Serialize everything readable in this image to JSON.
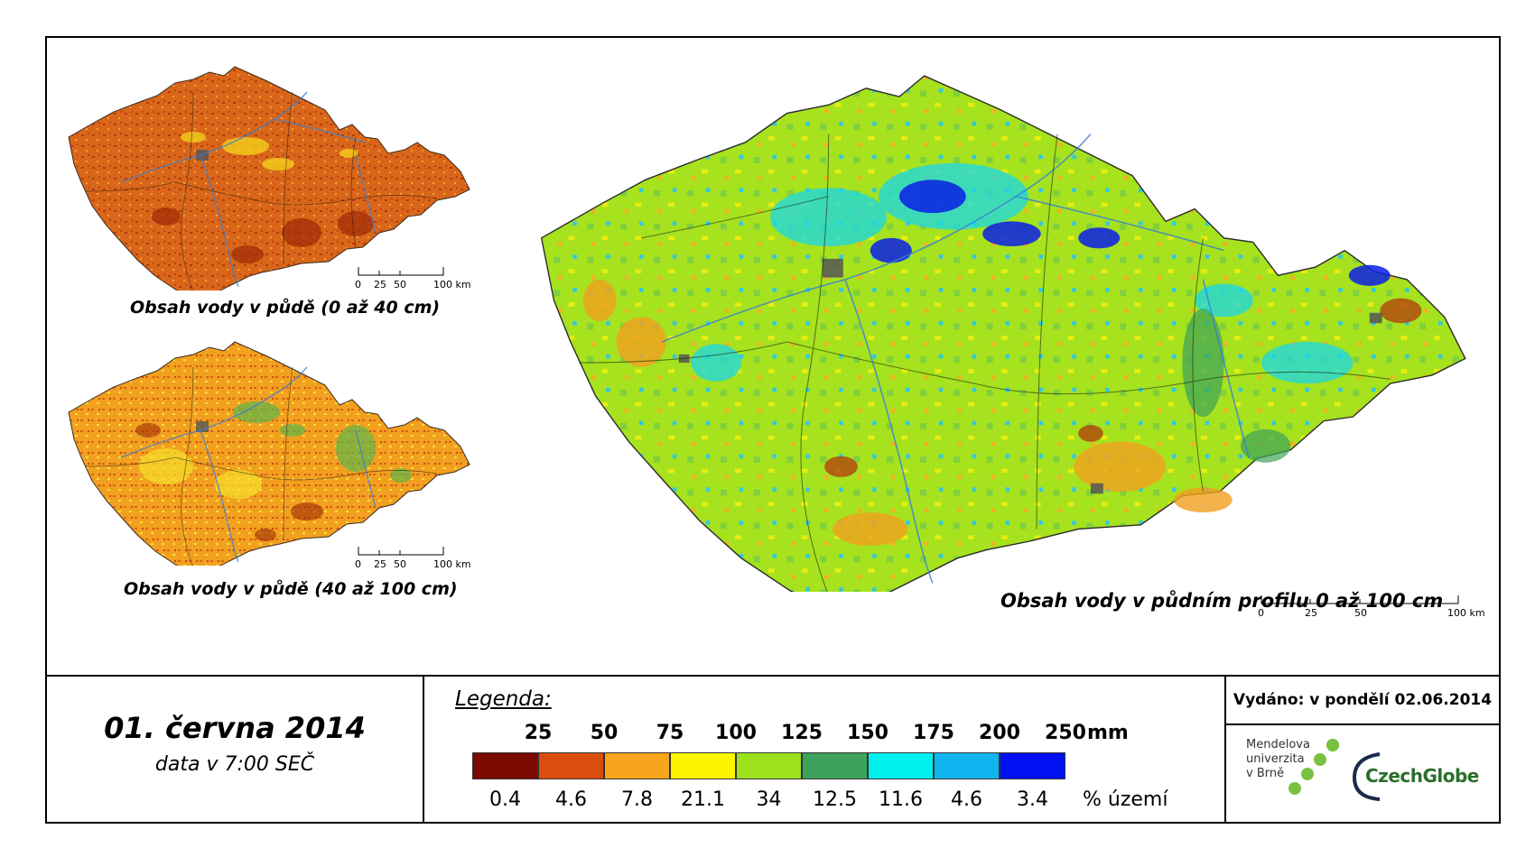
{
  "maps": {
    "small_top": {
      "caption": "Obsah vody v půdě (0 až 40 cm)"
    },
    "small_bottom": {
      "caption": "Obsah vody v půdě (40 až 100 cm)"
    },
    "large": {
      "caption": "Obsah vody v půdním profilu 0 až 100 cm"
    }
  },
  "scalebar": {
    "labels": [
      "0",
      "25",
      "50",
      "100 km"
    ]
  },
  "date": {
    "main": "01. června 2014",
    "sub": "data v 7:00 SEČ"
  },
  "legend": {
    "title": "Legenda:",
    "mm_unit": "mm",
    "pct_unit": "% území",
    "mm_values": [
      "25",
      "50",
      "75",
      "100",
      "125",
      "150",
      "175",
      "200",
      "250"
    ],
    "classes": [
      {
        "color": "#7b0a00",
        "pct": "0.4"
      },
      {
        "color": "#d94e0c",
        "pct": "4.6"
      },
      {
        "color": "#f7a51c",
        "pct": "7.8"
      },
      {
        "color": "#fbf500",
        "pct": "21.1"
      },
      {
        "color": "#9be21c",
        "pct": "34"
      },
      {
        "color": "#3ea35a",
        "pct": "12.5"
      },
      {
        "color": "#00f0f0",
        "pct": "11.6"
      },
      {
        "color": "#11b4ee",
        "pct": "4.6"
      },
      {
        "color": "#0010f0",
        "pct": "3.4"
      }
    ]
  },
  "published": {
    "text": "Vydáno: v pondělí 02.06.2014"
  },
  "logos": {
    "mendel": [
      "Mendelova",
      "univerzita",
      "v Brně"
    ],
    "czechglobe": "CzechGlobe"
  },
  "colors": {
    "border": "#000000",
    "river": "#3a7fd5",
    "urban": "#555555"
  }
}
